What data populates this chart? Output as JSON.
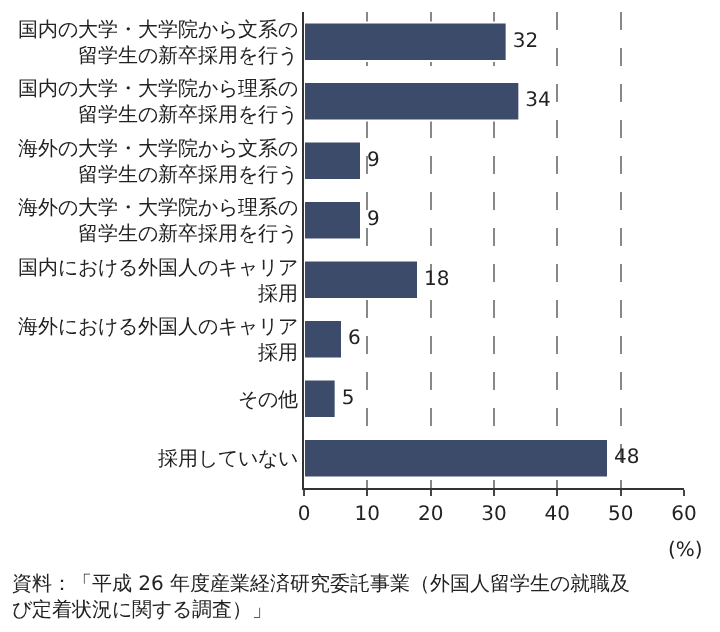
{
  "chart_data": {
    "type": "bar",
    "orientation": "horizontal",
    "categories": [
      "国内の大学・大学院から文系の留学生の新卒採用を行う",
      "国内の大学・大学院から理系の留学生の新卒採用を行う",
      "海外の大学・大学院から文系の留学生の新卒採用を行う",
      "海外の大学・大学院から理系の留学生の新卒採用を行う",
      "国内における外国人のキャリア採用",
      "海外における外国人のキャリア採用",
      "その他",
      "採用していない"
    ],
    "values": [
      32,
      34,
      9,
      9,
      18,
      6,
      5,
      48
    ],
    "color": "#3d4b6b",
    "xlim": [
      0,
      60
    ],
    "xticks": [
      0,
      10,
      20,
      30,
      40,
      50,
      60
    ],
    "xlabel": "(%)",
    "grid": "x",
    "data_labels": true,
    "annotations": [
      "資料：「平成 26 年度産業経済研究委託事業（外国人留学生の就職及び定着状況に関する調査）」"
    ]
  }
}
